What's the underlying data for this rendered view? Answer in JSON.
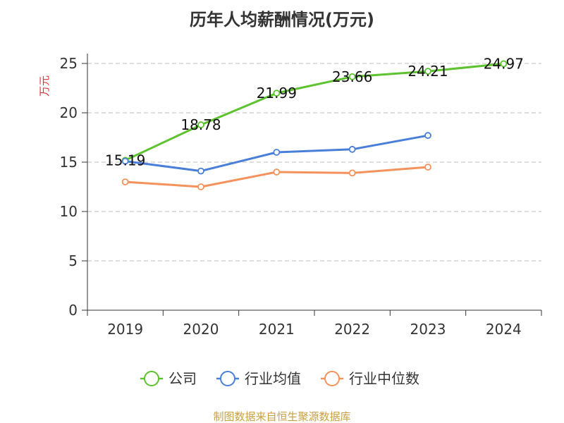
{
  "chart_data": {
    "type": "line",
    "title": "历年人均薪酬情况(万元)",
    "ylabel": "万元",
    "ylim": [
      0,
      25
    ],
    "yticks": [
      0,
      5,
      10,
      15,
      20,
      25
    ],
    "grid": true,
    "legend_position": "bottom",
    "categories": [
      "2019",
      "2020",
      "2021",
      "2022",
      "2023",
      "2024"
    ],
    "series": [
      {
        "name": "公司",
        "color": "#5cc22e",
        "values": [
          15.19,
          18.78,
          21.99,
          23.66,
          24.21,
          24.97
        ],
        "data_labels": [
          "15.19",
          "18.78",
          "21.99",
          "23.66",
          "24.21",
          "24.97"
        ]
      },
      {
        "name": "行业均值",
        "color": "#4a7fd8",
        "values": [
          15.1,
          14.1,
          16.0,
          16.3,
          17.7,
          null
        ]
      },
      {
        "name": "行业中位数",
        "color": "#f5925c",
        "values": [
          13.0,
          12.5,
          14.0,
          13.9,
          14.5,
          null
        ]
      }
    ]
  },
  "footer": {
    "source": "制图数据来自恒生聚源数据库",
    "color": "#c8a040"
  },
  "colors": {
    "ylabel": "#e03030",
    "axis": "#333333",
    "grid": "#bbbbbb"
  }
}
